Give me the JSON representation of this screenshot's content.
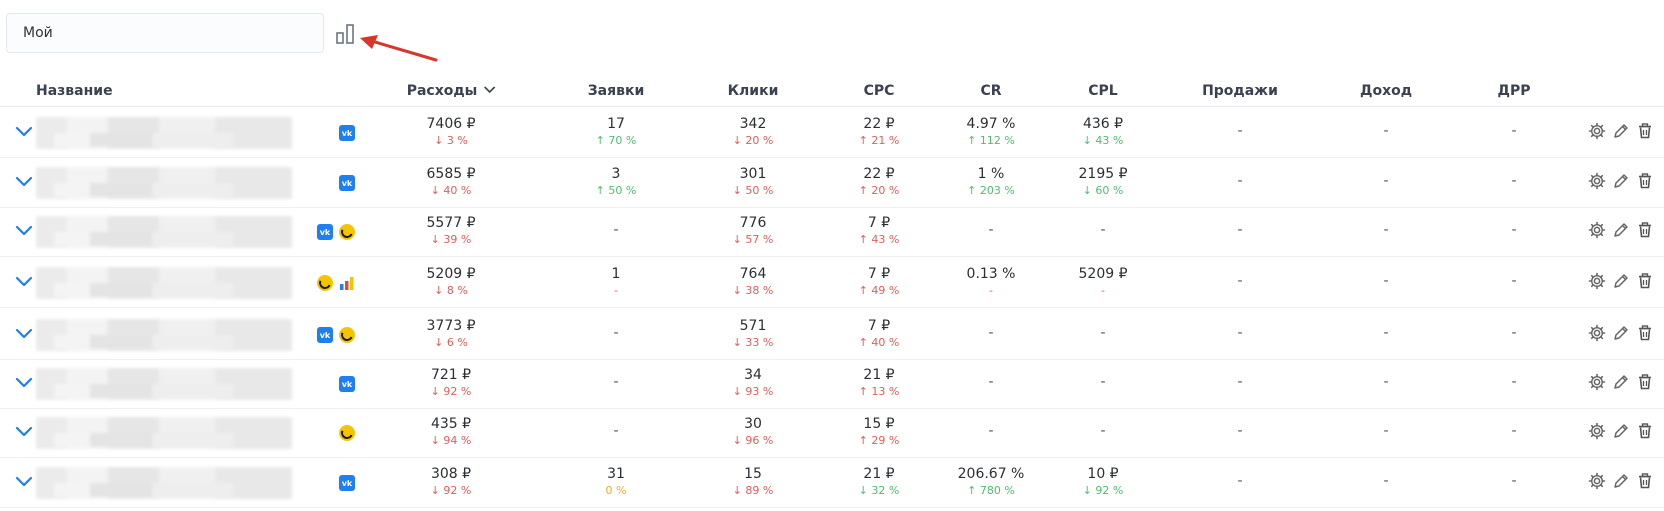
{
  "filter": {
    "value": "Мой"
  },
  "columns": {
    "name": "Название",
    "spend": "Расходы",
    "leads": "Заявки",
    "clicks": "Клики",
    "cpc": "CPC",
    "cr": "CR",
    "cpl": "CPL",
    "sales": "Продажи",
    "income": "Доход",
    "drr": "ДРР"
  },
  "icons": {
    "chart_toggle": "bar-chart-icon",
    "expand": "chevron-down-icon",
    "vk": "vk-icon",
    "yandex": "yandex-direct-icon",
    "metrica": "yandex-metrica-icon",
    "settings": "gear-icon",
    "edit": "pencil-icon",
    "delete": "trash-icon"
  },
  "colors": {
    "up": "#4cbf6e",
    "down": "#e55a5a",
    "neutral": "#f0a830",
    "accent": "#1e7ff2"
  },
  "vk_glyph": "vk",
  "rows": [
    {
      "sources": [
        "vk"
      ],
      "spend": {
        "v": "7406 ₽",
        "c": "↓ 3 %",
        "t": "down"
      },
      "leads": {
        "v": "17",
        "c": "↑ 70 %",
        "t": "up"
      },
      "clicks": {
        "v": "342",
        "c": "↓ 20 %",
        "t": "down"
      },
      "cpc": {
        "v": "22 ₽",
        "c": "↑ 21 %",
        "t": "down"
      },
      "cr": {
        "v": "4.97 %",
        "c": "↑ 112 %",
        "t": "up"
      },
      "cpl": {
        "v": "436 ₽",
        "c": "↓ 43 %",
        "t": "up"
      },
      "sales": "-",
      "income": "-",
      "drr": "-"
    },
    {
      "sources": [
        "vk"
      ],
      "spend": {
        "v": "6585 ₽",
        "c": "↓ 40 %",
        "t": "down"
      },
      "leads": {
        "v": "3",
        "c": "↑ 50 %",
        "t": "up"
      },
      "clicks": {
        "v": "301",
        "c": "↓ 50 %",
        "t": "down"
      },
      "cpc": {
        "v": "22 ₽",
        "c": "↑ 20 %",
        "t": "down"
      },
      "cr": {
        "v": "1 %",
        "c": "↑ 203 %",
        "t": "up"
      },
      "cpl": {
        "v": "2195 ₽",
        "c": "↓ 60 %",
        "t": "up"
      },
      "sales": "-",
      "income": "-",
      "drr": "-"
    },
    {
      "sources": [
        "vk",
        "yandex"
      ],
      "spend": {
        "v": "5577 ₽",
        "c": "↓ 39 %",
        "t": "down"
      },
      "leads": {
        "v": "-",
        "c": "",
        "t": ""
      },
      "clicks": {
        "v": "776",
        "c": "↓ 57 %",
        "t": "down"
      },
      "cpc": {
        "v": "7 ₽",
        "c": "↑ 43 %",
        "t": "down"
      },
      "cr": {
        "v": "-",
        "c": "",
        "t": ""
      },
      "cpl": {
        "v": "-",
        "c": "",
        "t": ""
      },
      "sales": "-",
      "income": "-",
      "drr": "-"
    },
    {
      "sources": [
        "yandex",
        "metrica"
      ],
      "spend": {
        "v": "5209 ₽",
        "c": "↓ 8 %",
        "t": "down"
      },
      "leads": {
        "v": "1",
        "c": "-",
        "t": "down"
      },
      "clicks": {
        "v": "764",
        "c": "↓ 38 %",
        "t": "down"
      },
      "cpc": {
        "v": "7 ₽",
        "c": "↑ 49 %",
        "t": "down"
      },
      "cr": {
        "v": "0.13 %",
        "c": "-",
        "t": "down"
      },
      "cpl": {
        "v": "5209 ₽",
        "c": "-",
        "t": "down"
      },
      "sales": "-",
      "income": "-",
      "drr": "-"
    },
    {
      "sources": [
        "vk",
        "yandex"
      ],
      "spend": {
        "v": "3773 ₽",
        "c": "↓ 6 %",
        "t": "down"
      },
      "leads": {
        "v": "-",
        "c": "",
        "t": ""
      },
      "clicks": {
        "v": "571",
        "c": "↓ 33 %",
        "t": "down"
      },
      "cpc": {
        "v": "7 ₽",
        "c": "↑ 40 %",
        "t": "down"
      },
      "cr": {
        "v": "-",
        "c": "",
        "t": ""
      },
      "cpl": {
        "v": "-",
        "c": "",
        "t": ""
      },
      "sales": "-",
      "income": "-",
      "drr": "-"
    },
    {
      "sources": [
        "vk"
      ],
      "spend": {
        "v": "721 ₽",
        "c": "↓ 92 %",
        "t": "down"
      },
      "leads": {
        "v": "-",
        "c": "",
        "t": ""
      },
      "clicks": {
        "v": "34",
        "c": "↓ 93 %",
        "t": "down"
      },
      "cpc": {
        "v": "21 ₽",
        "c": "↑ 13 %",
        "t": "down"
      },
      "cr": {
        "v": "-",
        "c": "",
        "t": ""
      },
      "cpl": {
        "v": "-",
        "c": "",
        "t": ""
      },
      "sales": "-",
      "income": "-",
      "drr": "-"
    },
    {
      "sources": [
        "yandex"
      ],
      "spend": {
        "v": "435 ₽",
        "c": "↓ 94 %",
        "t": "down"
      },
      "leads": {
        "v": "-",
        "c": "",
        "t": ""
      },
      "clicks": {
        "v": "30",
        "c": "↓ 96 %",
        "t": "down"
      },
      "cpc": {
        "v": "15 ₽",
        "c": "↑ 29 %",
        "t": "down"
      },
      "cr": {
        "v": "-",
        "c": "",
        "t": ""
      },
      "cpl": {
        "v": "-",
        "c": "",
        "t": ""
      },
      "sales": "-",
      "income": "-",
      "drr": "-"
    },
    {
      "sources": [
        "vk"
      ],
      "spend": {
        "v": "308 ₽",
        "c": "↓ 92 %",
        "t": "down"
      },
      "leads": {
        "v": "31",
        "c": "0 %",
        "t": "neutral"
      },
      "clicks": {
        "v": "15",
        "c": "↓ 89 %",
        "t": "down"
      },
      "cpc": {
        "v": "21 ₽",
        "c": "↓ 32 %",
        "t": "up"
      },
      "cr": {
        "v": "206.67 %",
        "c": "↑ 780 %",
        "t": "up"
      },
      "cpl": {
        "v": "10 ₽",
        "c": "↓ 92 %",
        "t": "up"
      },
      "sales": "-",
      "income": "-",
      "drr": "-"
    }
  ]
}
